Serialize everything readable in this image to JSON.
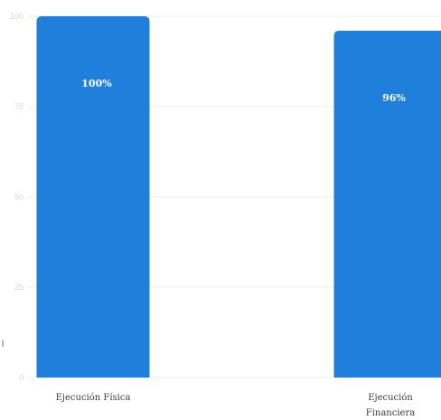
{
  "chart_data": {
    "type": "bar",
    "categories": [
      "Ejecución Física",
      "Ejecución Financiera"
    ],
    "category_lines": [
      [
        "Ejecución Física"
      ],
      [
        "Ejecución",
        "Financiera"
      ]
    ],
    "values": [
      100,
      96
    ],
    "data_labels": [
      "100%",
      "96%"
    ],
    "ylim": [
      0,
      100
    ],
    "yticks": [
      0,
      25,
      50,
      75,
      100
    ],
    "ytick_labels": [
      "0",
      "25",
      "50",
      "75",
      "100"
    ],
    "ylabel": "",
    "xlabel": "",
    "title": "",
    "grid": true,
    "colors": {
      "bar": "#1f7fda",
      "grid": "#eeeeee",
      "tick_label": "#d6d6d6",
      "category_label": "#3b3b3b"
    }
  }
}
